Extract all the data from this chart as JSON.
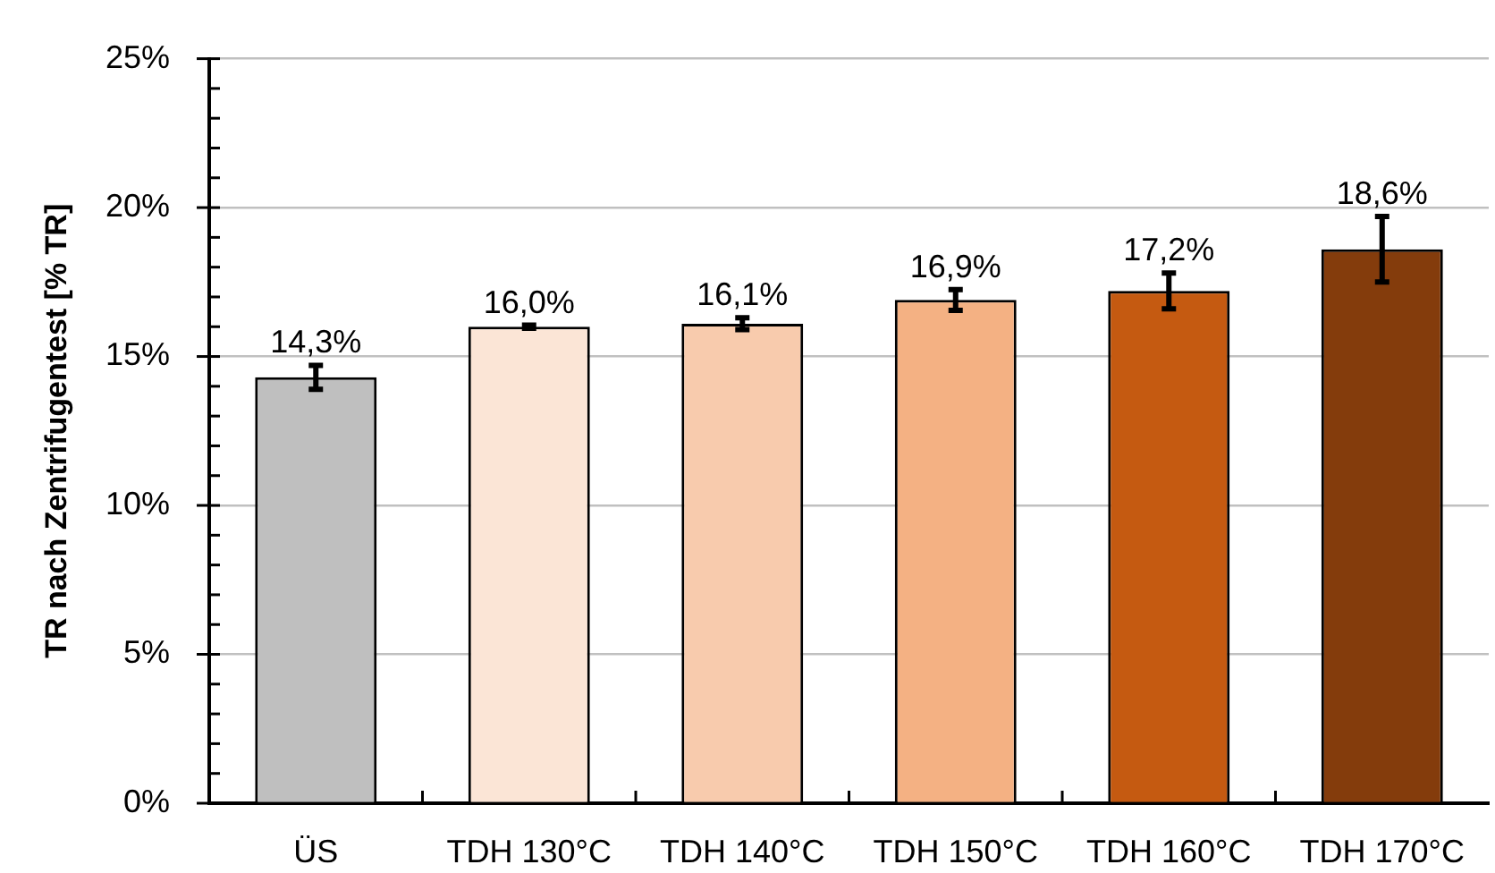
{
  "chart_data": {
    "type": "bar",
    "ylabel": "TR nach Zentrifugentest [% TR]",
    "categories": [
      "ÜS",
      "TDH 130°C",
      "TDH 140°C",
      "TDH 150°C",
      "TDH 160°C",
      "TDH 170°C"
    ],
    "values": [
      14.3,
      16.0,
      16.1,
      16.9,
      17.2,
      18.6
    ],
    "colors": [
      "#bfbfbf",
      "#fbe5d6",
      "#f8cbad",
      "#f4b183",
      "#c55a11",
      "#843c0c"
    ],
    "errors": [
      0.4,
      0.05,
      0.2,
      0.35,
      0.6,
      1.1
    ],
    "value_labels": [
      "14,3%",
      "16,0%",
      "16,1%",
      "16,9%",
      "17,2%",
      "18,6%"
    ],
    "ylim": [
      0,
      25
    ],
    "yticks": [
      {
        "value": 0,
        "label": "0%"
      },
      {
        "value": 1,
        "label": null
      },
      {
        "value": 2,
        "label": null
      },
      {
        "value": 3,
        "label": null
      },
      {
        "value": 4,
        "label": null
      },
      {
        "value": 5,
        "label": "5%"
      },
      {
        "value": 6,
        "label": null
      },
      {
        "value": 7,
        "label": null
      },
      {
        "value": 8,
        "label": null
      },
      {
        "value": 9,
        "label": null
      },
      {
        "value": 10,
        "label": "10%"
      },
      {
        "value": 11,
        "label": null
      },
      {
        "value": 12,
        "label": null
      },
      {
        "value": 13,
        "label": null
      },
      {
        "value": 14,
        "label": null
      },
      {
        "value": 15,
        "label": "15%"
      },
      {
        "value": 16,
        "label": null
      },
      {
        "value": 17,
        "label": null
      },
      {
        "value": 18,
        "label": null
      },
      {
        "value": 19,
        "label": null
      },
      {
        "value": 20,
        "label": "20%"
      },
      {
        "value": 21,
        "label": null
      },
      {
        "value": 22,
        "label": null
      },
      {
        "value": 23,
        "label": null
      },
      {
        "value": 24,
        "label": null
      },
      {
        "value": 25,
        "label": "25%"
      }
    ],
    "grid": "y"
  }
}
